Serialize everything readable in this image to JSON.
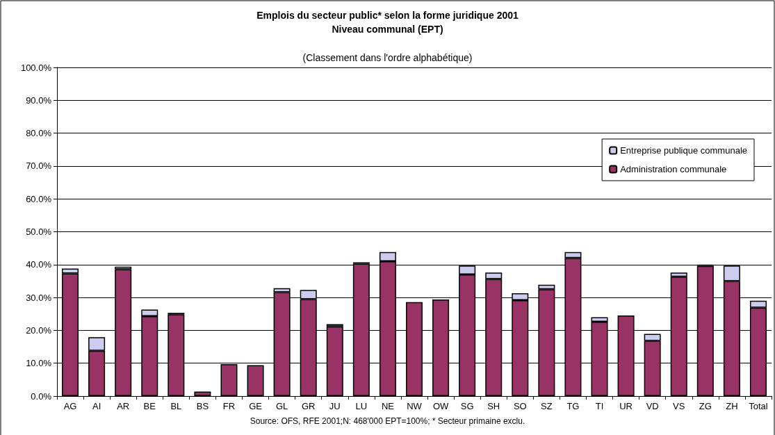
{
  "chart_data": {
    "type": "bar",
    "title": "Emplois du secteur public* selon la forme juridique 2001",
    "subtitle": "Niveau communal (EPT)",
    "categories": [
      "AG",
      "AI",
      "AR",
      "BE",
      "BL",
      "BS",
      "FR",
      "GE",
      "GL",
      "GR",
      "JU",
      "LU",
      "NE",
      "NW",
      "OW",
      "SG",
      "SH",
      "SO",
      "SZ",
      "TG",
      "TI",
      "UR",
      "VD",
      "VS",
      "ZG",
      "ZH",
      "Total"
    ],
    "stacked": true,
    "series": [
      {
        "name": "Administration communale",
        "color": "#993366",
        "values": [
          37.3,
          13.8,
          38.6,
          24.3,
          24.9,
          1.4,
          9.7,
          9.4,
          31.6,
          29.5,
          21.2,
          40.3,
          41.0,
          28.6,
          29.4,
          37.0,
          35.6,
          29.2,
          32.5,
          42.0,
          22.6,
          24.5,
          16.8,
          36.3,
          39.6,
          35.0,
          26.9
        ]
      },
      {
        "name": "Entreprise publique communale",
        "color": "#ccccee",
        "values": [
          1.5,
          4.1,
          0.8,
          2.0,
          0.4,
          null,
          null,
          null,
          1.2,
          2.8,
          0.7,
          0.4,
          2.8,
          null,
          null,
          2.7,
          2.0,
          2.1,
          1.4,
          1.8,
          1.4,
          null,
          2.1,
          1.3,
          0.4,
          4.7,
          2.1
        ]
      }
    ],
    "ylim": [
      0,
      100
    ],
    "yticks": [
      {
        "value": 0,
        "label": "0.0%"
      },
      {
        "value": 10,
        "label": "10.0%"
      },
      {
        "value": 20,
        "label": "20.0%"
      },
      {
        "value": 30,
        "label": "30.0%"
      },
      {
        "value": 40,
        "label": "40.0%"
      },
      {
        "value": 50,
        "label": "50.0%"
      },
      {
        "value": 60,
        "label": "60.0%"
      },
      {
        "value": 70,
        "label": "70.0%"
      },
      {
        "value": 80,
        "label": "80.0%"
      },
      {
        "value": 90,
        "label": "90.0%"
      },
      {
        "value": 100,
        "label": "100.0%"
      }
    ],
    "grid": "y",
    "legend": "right",
    "annotations": [
      "(Classement dans l'ordre alphabétique)",
      "Source: OFS, RFE 2001;N: 468'000 EPT=100%; * Secteur primaine exclu."
    ]
  }
}
